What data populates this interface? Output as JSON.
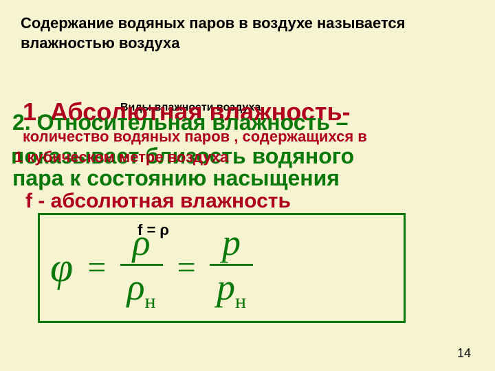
{
  "title": {
    "line1": "Содержание  водяных  паров  в воздухе  называется",
    "line2": "влажностью  воздуха"
  },
  "smallHeading": "Виды  влажности  воздуха",
  "red1": "1. Абсолютная  влажность-",
  "green": "2. Относительная  влажность –",
  "red2": "количество  водяных  паров , содержащихся  в",
  "green2": "показывает  близость  водяного",
  "red3": "1 кубическом  метре  воздуха",
  "green3": "пара  к  состоянию  насыщения",
  "red4": "f -  абсолютная  влажность",
  "formulaSmall": "f =  ρ",
  "formula": {
    "phi": "φ",
    "rho": "ρ",
    "rhoSub": "н",
    "p": "p",
    "pSub": "н"
  },
  "pageNum": "14"
}
